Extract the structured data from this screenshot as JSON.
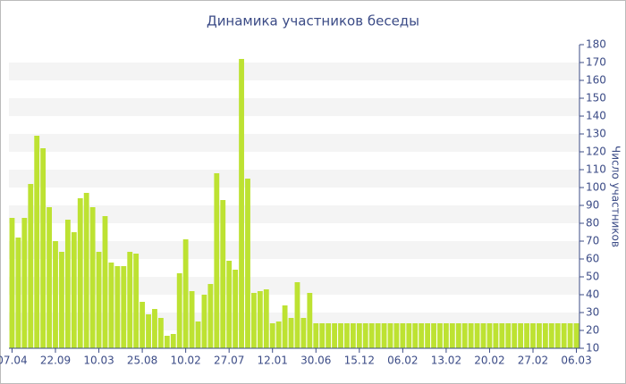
{
  "chart_data": {
    "type": "bar",
    "title": "Динамика участников беседы",
    "y_label": "Число участников",
    "categories": [
      "07.04",
      null,
      null,
      null,
      null,
      null,
      null,
      "22.09",
      null,
      null,
      null,
      null,
      null,
      null,
      "10.03",
      null,
      null,
      null,
      null,
      null,
      null,
      "25.08",
      null,
      null,
      null,
      null,
      null,
      null,
      "10.02",
      null,
      null,
      null,
      null,
      null,
      null,
      "27.07",
      null,
      null,
      null,
      null,
      null,
      null,
      "12.01",
      null,
      null,
      null,
      null,
      null,
      null,
      "30.06",
      null,
      null,
      null,
      null,
      null,
      null,
      "15.12",
      null,
      null,
      null,
      null,
      null,
      null,
      "06.02",
      null,
      null,
      null,
      null,
      null,
      null,
      "13.02",
      null,
      null,
      null,
      null,
      null,
      null,
      "20.02",
      null,
      null,
      null,
      null,
      null,
      null,
      "27.02",
      null,
      null,
      null,
      null,
      null,
      null,
      "06.03"
    ],
    "values": [
      83,
      72,
      83,
      102,
      129,
      122,
      89,
      70,
      64,
      82,
      75,
      94,
      97,
      89,
      64,
      84,
      58,
      56,
      56,
      64,
      63,
      36,
      29,
      32,
      27,
      17,
      18,
      52,
      71,
      42,
      25,
      40,
      46,
      108,
      93,
      59,
      54,
      172,
      105,
      41,
      42,
      43,
      24,
      25,
      34,
      27,
      47,
      27,
      41,
      24,
      24,
      24,
      24,
      24,
      24,
      24,
      24,
      24,
      24,
      24,
      24,
      24,
      24,
      24,
      24,
      24,
      24,
      24,
      24,
      24,
      24,
      24,
      24,
      24,
      24,
      24,
      24,
      24,
      24,
      24,
      24,
      24,
      24,
      24,
      24,
      24,
      24,
      24,
      24,
      24,
      24,
      24
    ],
    "color": "#bde232",
    "ylim": [
      10,
      180
    ],
    "yticks": [
      10,
      20,
      30,
      40,
      50,
      60,
      70,
      80,
      90,
      100,
      110,
      120,
      130,
      140,
      150,
      160,
      170,
      180
    ],
    "grid": true
  }
}
